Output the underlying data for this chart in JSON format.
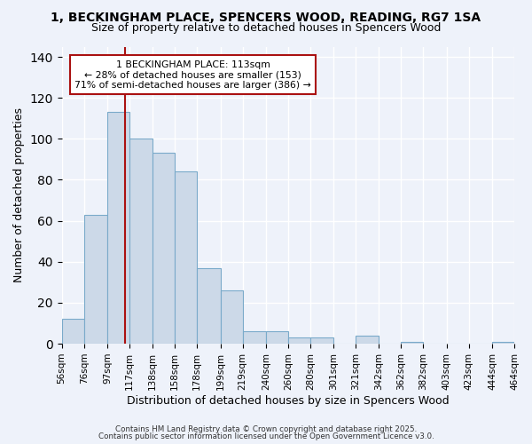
{
  "title1": "1, BECKINGHAM PLACE, SPENCERS WOOD, READING, RG7 1SA",
  "title2": "Size of property relative to detached houses in Spencers Wood",
  "xlabel": "Distribution of detached houses by size in Spencers Wood",
  "ylabel": "Number of detached properties",
  "bar_values": [
    12,
    63,
    113,
    100,
    93,
    84,
    37,
    26,
    6,
    6,
    3,
    3,
    0,
    4,
    0,
    1,
    0,
    0,
    0,
    1
  ],
  "bin_edges": [
    56,
    76,
    97,
    117,
    138,
    158,
    178,
    199,
    219,
    240,
    260,
    280,
    301,
    321,
    342,
    362,
    382,
    403,
    423,
    444,
    464
  ],
  "bin_labels": [
    "56sqm",
    "76sqm",
    "97sqm",
    "117sqm",
    "138sqm",
    "158sqm",
    "178sqm",
    "199sqm",
    "219sqm",
    "240sqm",
    "260sqm",
    "280sqm",
    "301sqm",
    "321sqm",
    "342sqm",
    "362sqm",
    "382sqm",
    "403sqm",
    "423sqm",
    "444sqm",
    "464sqm"
  ],
  "bar_color": "#ccd9e8",
  "bar_edge_color": "#7aaaca",
  "background_color": "#eef2fa",
  "grid_color": "#ffffff",
  "vline_x": 113,
  "vline_color": "#aa1111",
  "annotation_title": "1 BECKINGHAM PLACE: 113sqm",
  "annotation_line1": "← 28% of detached houses are smaller (153)",
  "annotation_line2": "71% of semi-detached houses are larger (386) →",
  "annotation_box_color": "#ffffff",
  "annotation_box_edge": "#aa1111",
  "yticks": [
    0,
    20,
    40,
    60,
    80,
    100,
    120,
    140
  ],
  "ylim": [
    0,
    145
  ],
  "footnote1": "Contains HM Land Registry data © Crown copyright and database right 2025.",
  "footnote2": "Contains public sector information licensed under the Open Government Licence v3.0."
}
